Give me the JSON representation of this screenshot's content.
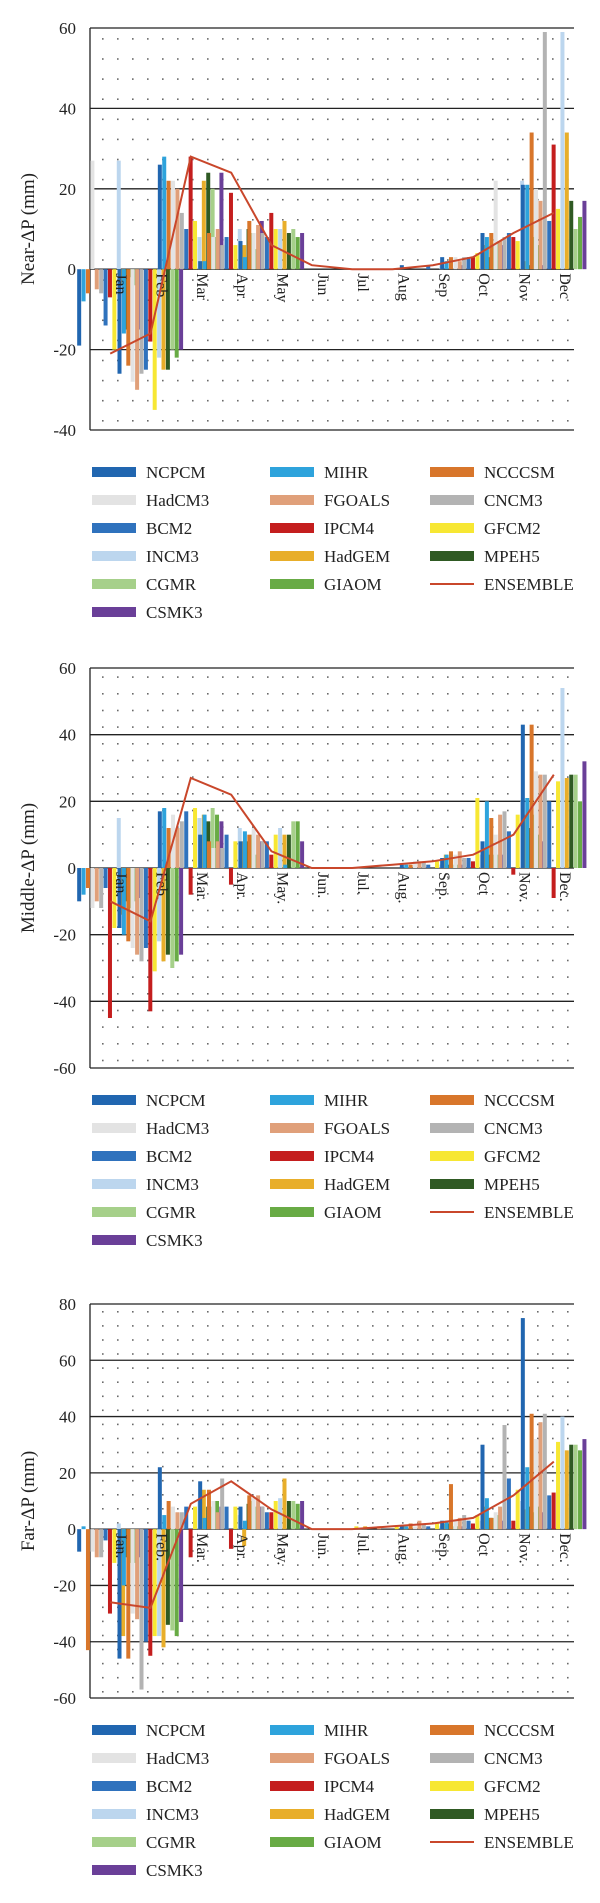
{
  "months": [
    "Jan",
    "Feb",
    "Mar",
    "Apr",
    "May",
    "Jun",
    "Jul",
    "Aug",
    "Sep",
    "Oct",
    "Nov",
    "Dec"
  ],
  "months_alt": [
    "Jan.",
    "Feb.",
    "Mar.",
    "Apr.",
    "May.",
    "Jun.",
    "Jul.",
    "Aug.",
    "Sep.",
    "Oct",
    "Nov.",
    "Dec."
  ],
  "models": [
    {
      "name": "NCPCM",
      "color": "#2166b0"
    },
    {
      "name": "MIHR",
      "color": "#2ea3dc"
    },
    {
      "name": "NCCCSM",
      "color": "#d8762b"
    },
    {
      "name": "HadCM3",
      "color": "#e3e3e3"
    },
    {
      "name": "FGOALS",
      "color": "#e0a07a"
    },
    {
      "name": "CNCM3",
      "color": "#b3b3b3"
    },
    {
      "name": "BCM2",
      "color": "#2f72bd"
    },
    {
      "name": "IPCM4",
      "color": "#c41e1e"
    },
    {
      "name": "GFCM2",
      "color": "#f7e733"
    },
    {
      "name": "INCM3",
      "color": "#bcd6ee"
    },
    {
      "name": "HadGEM",
      "color": "#e8ae2a"
    },
    {
      "name": "MPEH5",
      "color": "#2f5a23"
    },
    {
      "name": "CGMR",
      "color": "#a6d08a"
    },
    {
      "name": "GIAOM",
      "color": "#68ab45"
    },
    {
      "name": "CSMK3",
      "color": "#6a3f98"
    }
  ],
  "ensemble": {
    "name": "ENSEMBLE",
    "color": "#c9472b"
  },
  "chart_data": [
    {
      "type": "bar",
      "ylabel": "Near-ΔP (mm)",
      "ylim": [
        -40,
        60
      ],
      "yticks": [
        -40,
        -20,
        0,
        20,
        40,
        60
      ],
      "month_style": "plain",
      "series": [
        [
          -19,
          -26,
          26,
          2,
          7,
          0,
          0,
          0,
          1,
          3,
          9,
          21
        ],
        [
          -8,
          -16,
          28,
          2,
          3,
          0,
          0,
          0,
          0,
          2,
          8,
          21
        ],
        [
          -6,
          -24,
          22,
          9,
          12,
          0,
          0,
          0,
          0,
          3,
          9,
          34
        ],
        [
          27,
          -28,
          22,
          8,
          9,
          0,
          0,
          0,
          0,
          3,
          22,
          20
        ],
        [
          -5,
          -30,
          20,
          10,
          11,
          0,
          0,
          0,
          0,
          2,
          7,
          17
        ],
        [
          -6,
          -26,
          14,
          6,
          9,
          0,
          0,
          0,
          0,
          3,
          8,
          59
        ],
        [
          -14,
          -25,
          10,
          8,
          8,
          0,
          0,
          0,
          1,
          3,
          9,
          12
        ],
        [
          -7,
          -18,
          28,
          19,
          14,
          0,
          0,
          0,
          0,
          3,
          8,
          31
        ],
        [
          -20,
          -35,
          12,
          6,
          10,
          0,
          0,
          0,
          0,
          4,
          7,
          15
        ],
        [
          27,
          -22,
          8,
          10,
          10,
          0,
          0,
          0,
          1,
          4,
          22,
          59
        ],
        [
          -4,
          -25,
          22,
          6,
          12,
          0,
          0,
          0,
          0,
          6,
          2,
          34
        ],
        [
          -15,
          -25,
          24,
          10,
          9,
          0,
          0,
          0,
          0,
          3,
          1,
          17
        ],
        [
          -2,
          -20,
          20,
          9,
          10,
          0,
          0,
          0,
          0,
          6,
          8,
          10
        ],
        [
          -4,
          -22,
          8,
          5,
          8,
          0,
          0,
          0,
          0,
          7,
          6,
          13
        ],
        [
          -15,
          -20,
          24,
          12,
          9,
          0,
          0,
          0,
          1,
          6,
          1,
          17
        ]
      ],
      "ensemble": [
        -21,
        -16,
        28,
        24,
        6,
        1,
        0,
        0,
        1,
        3,
        9,
        14
      ]
    },
    {
      "type": "bar",
      "ylabel": "Middle-ΔP (mm)",
      "ylim": [
        -60,
        60
      ],
      "yticks": [
        -60,
        -40,
        -20,
        0,
        20,
        40,
        60
      ],
      "month_style": "dotted",
      "series": [
        [
          -10,
          -18,
          17,
          10,
          8,
          0,
          0,
          0,
          1,
          3,
          8,
          43
        ],
        [
          -8,
          -20,
          18,
          16,
          11,
          1,
          0,
          0,
          1,
          4,
          20,
          21
        ],
        [
          -6,
          -22,
          12,
          8,
          10,
          0,
          0,
          0,
          1,
          5,
          15,
          43
        ],
        [
          -12,
          -24,
          16,
          6,
          12,
          0,
          0,
          0,
          2,
          4,
          10,
          29
        ],
        [
          -10,
          -26,
          12,
          8,
          10,
          0,
          0,
          0,
          2,
          5,
          16,
          28
        ],
        [
          -12,
          -28,
          14,
          6,
          8,
          0,
          0,
          0,
          2,
          3,
          17,
          28
        ],
        [
          -6,
          -24,
          17,
          10,
          8,
          0,
          0,
          0,
          1,
          3,
          11,
          20
        ],
        [
          -45,
          -43,
          -8,
          -5,
          4,
          0,
          0,
          0,
          0,
          2,
          -2,
          -9
        ],
        [
          -18,
          -31,
          18,
          8,
          10,
          0,
          0,
          0,
          2,
          21,
          16,
          26
        ],
        [
          15,
          -22,
          15,
          12,
          12,
          0,
          0,
          0,
          1,
          4,
          20,
          54
        ],
        [
          -14,
          -28,
          16,
          8,
          10,
          0,
          0,
          0,
          4,
          6,
          16,
          27
        ],
        [
          -10,
          -26,
          14,
          8,
          10,
          0,
          0,
          0,
          1,
          4,
          12,
          28
        ],
        [
          -12,
          -30,
          18,
          10,
          14,
          0,
          0,
          0,
          1,
          4,
          16,
          28
        ],
        [
          -10,
          -28,
          16,
          4,
          14,
          0,
          0,
          0,
          1,
          4,
          10,
          20
        ],
        [
          -9,
          -26,
          14,
          8,
          8,
          0,
          0,
          0,
          1,
          4,
          8,
          32
        ]
      ],
      "ensemble": [
        -10,
        -16,
        27,
        22,
        5,
        0,
        0,
        1,
        2,
        4,
        10,
        28
      ]
    },
    {
      "type": "bar",
      "ylabel": "Far-ΔP (mm)",
      "ylim": [
        -60,
        80
      ],
      "yticks": [
        -60,
        -40,
        -20,
        0,
        20,
        40,
        60,
        80
      ],
      "month_style": "dotted",
      "series": [
        [
          -8,
          -46,
          22,
          17,
          8,
          0,
          0,
          0,
          1,
          3,
          30,
          75
        ],
        [
          1,
          -20,
          5,
          4,
          3,
          0,
          0,
          0,
          1,
          3,
          11,
          22
        ],
        [
          -43,
          -46,
          10,
          14,
          12,
          0,
          0,
          0,
          2,
          16,
          4,
          41
        ],
        [
          -8,
          -30,
          8,
          10,
          11,
          0,
          0,
          0,
          1,
          3,
          6,
          32
        ],
        [
          -10,
          -32,
          6,
          6,
          12,
          0,
          0,
          1,
          3,
          4,
          8,
          38
        ],
        [
          -10,
          -57,
          6,
          18,
          8,
          0,
          0,
          0,
          2,
          5,
          37,
          41
        ],
        [
          -4,
          -40,
          8,
          8,
          6,
          0,
          0,
          0,
          1,
          3,
          18,
          12
        ],
        [
          -30,
          -45,
          -10,
          -7,
          6,
          0,
          0,
          0,
          0,
          2,
          3,
          13
        ],
        [
          -12,
          -38,
          8,
          8,
          10,
          0,
          1,
          1,
          2,
          5,
          14,
          31
        ],
        [
          2,
          -38,
          10,
          5,
          11,
          0,
          0,
          0,
          1,
          3,
          10,
          40
        ],
        [
          -38,
          -42,
          14,
          -6,
          18,
          0,
          1,
          1,
          2,
          8,
          7,
          28
        ],
        [
          -10,
          -34,
          8,
          9,
          10,
          0,
          0,
          0,
          2,
          4,
          8,
          30
        ],
        [
          -12,
          -36,
          8,
          10,
          10,
          0,
          0,
          0,
          1,
          4,
          6,
          30
        ],
        [
          -12,
          -38,
          10,
          8,
          9,
          0,
          0,
          0,
          1,
          5,
          8,
          28
        ],
        [
          -10,
          -33,
          8,
          8,
          10,
          0,
          0,
          0,
          1,
          3,
          6,
          32
        ]
      ],
      "ensemble": [
        -26,
        -28,
        9,
        17,
        7,
        0,
        0,
        1,
        2,
        4,
        12,
        24
      ]
    }
  ]
}
